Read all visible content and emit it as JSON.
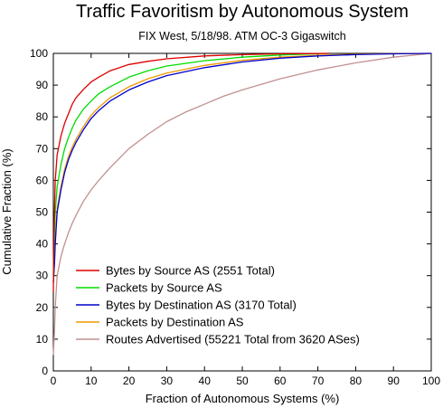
{
  "chart_data": {
    "type": "line",
    "title": "Traffic Favoritism by Autonomous System",
    "subtitle": "FIX West, 5/18/98. ATM OC-3 Gigaswitch",
    "xlabel": "Fraction of Autonomous Systems (%)",
    "ylabel": "Cumulative Fraction (%)",
    "xlim": [
      0,
      100
    ],
    "ylim": [
      0,
      100
    ],
    "xticks": [
      0,
      10,
      20,
      30,
      40,
      50,
      60,
      70,
      80,
      90,
      100
    ],
    "yticks": [
      0,
      10,
      20,
      30,
      40,
      50,
      60,
      70,
      80,
      90,
      100
    ],
    "grid": false,
    "legend_position": "bottom-left",
    "series": [
      {
        "name": "Bytes by Source AS (2551 Total)",
        "color": "#dd0000",
        "x": [
          0,
          0.2,
          0.5,
          1,
          2,
          3,
          4,
          5,
          6,
          8,
          10,
          12,
          15,
          20,
          25,
          30,
          40,
          50,
          60,
          70,
          73
        ],
        "y": [
          25,
          45,
          60,
          68,
          74,
          78,
          81,
          84,
          86,
          88.7,
          91,
          92.5,
          94.5,
          96.5,
          97.5,
          98.3,
          99.2,
          99.6,
          99.85,
          99.95,
          100
        ]
      },
      {
        "name": "Packets by Source AS",
        "color": "#00dd00",
        "x": [
          0,
          0.2,
          0.5,
          1,
          2,
          3,
          4,
          5,
          6,
          8,
          10,
          12,
          15,
          20,
          25,
          30,
          40,
          50,
          60,
          70,
          73
        ],
        "y": [
          30,
          40,
          50,
          58,
          65,
          70,
          73.5,
          76.5,
          79,
          82.5,
          85,
          87.3,
          89.5,
          92.5,
          94.5,
          96,
          97.7,
          98.8,
          99.5,
          99.9,
          100
        ]
      },
      {
        "name": "Bytes by Destination AS (3170 Total)",
        "color": "#0000cc",
        "x": [
          0,
          0.3,
          0.5,
          1,
          2,
          3,
          4,
          5,
          6,
          8,
          10,
          12,
          15,
          20,
          25,
          30,
          40,
          50,
          60,
          70,
          80,
          90,
          100
        ],
        "y": [
          28,
          34,
          40,
          50,
          57,
          62.5,
          66.5,
          69.5,
          72,
          76,
          79.5,
          82,
          85,
          88.5,
          91,
          93,
          95.5,
          97.3,
          98.5,
          99.2,
          99.6,
          99.85,
          100
        ]
      },
      {
        "name": "Packets by Destination AS",
        "color": "#ee9900",
        "x": [
          0,
          0.3,
          0.5,
          1,
          2,
          3,
          4,
          5,
          6,
          8,
          10,
          12,
          15,
          20,
          25,
          30,
          40,
          50,
          60,
          70,
          80,
          90,
          100
        ],
        "y": [
          28,
          35,
          41,
          51,
          58,
          63.5,
          67.5,
          70.5,
          73,
          77,
          80.5,
          83,
          86,
          89.5,
          92,
          93.8,
          96.2,
          97.8,
          98.8,
          99.4,
          99.75,
          99.9,
          100
        ]
      },
      {
        "name": "Routes Advertised (55221 Total from 3620 ASes)",
        "color": "#c09090",
        "x": [
          0,
          0.3,
          0.5,
          1,
          2,
          3,
          4,
          5,
          6,
          8,
          10,
          12,
          15,
          20,
          25,
          30,
          35,
          40,
          45,
          50,
          60,
          70,
          80,
          90,
          100
        ],
        "y": [
          5,
          13,
          20,
          30,
          36,
          40,
          43.5,
          46.5,
          49,
          53.5,
          57,
          60,
          64,
          70,
          74.5,
          78.5,
          81.5,
          84,
          86.5,
          88.5,
          92,
          94.8,
          97,
          98.8,
          100
        ]
      }
    ]
  }
}
